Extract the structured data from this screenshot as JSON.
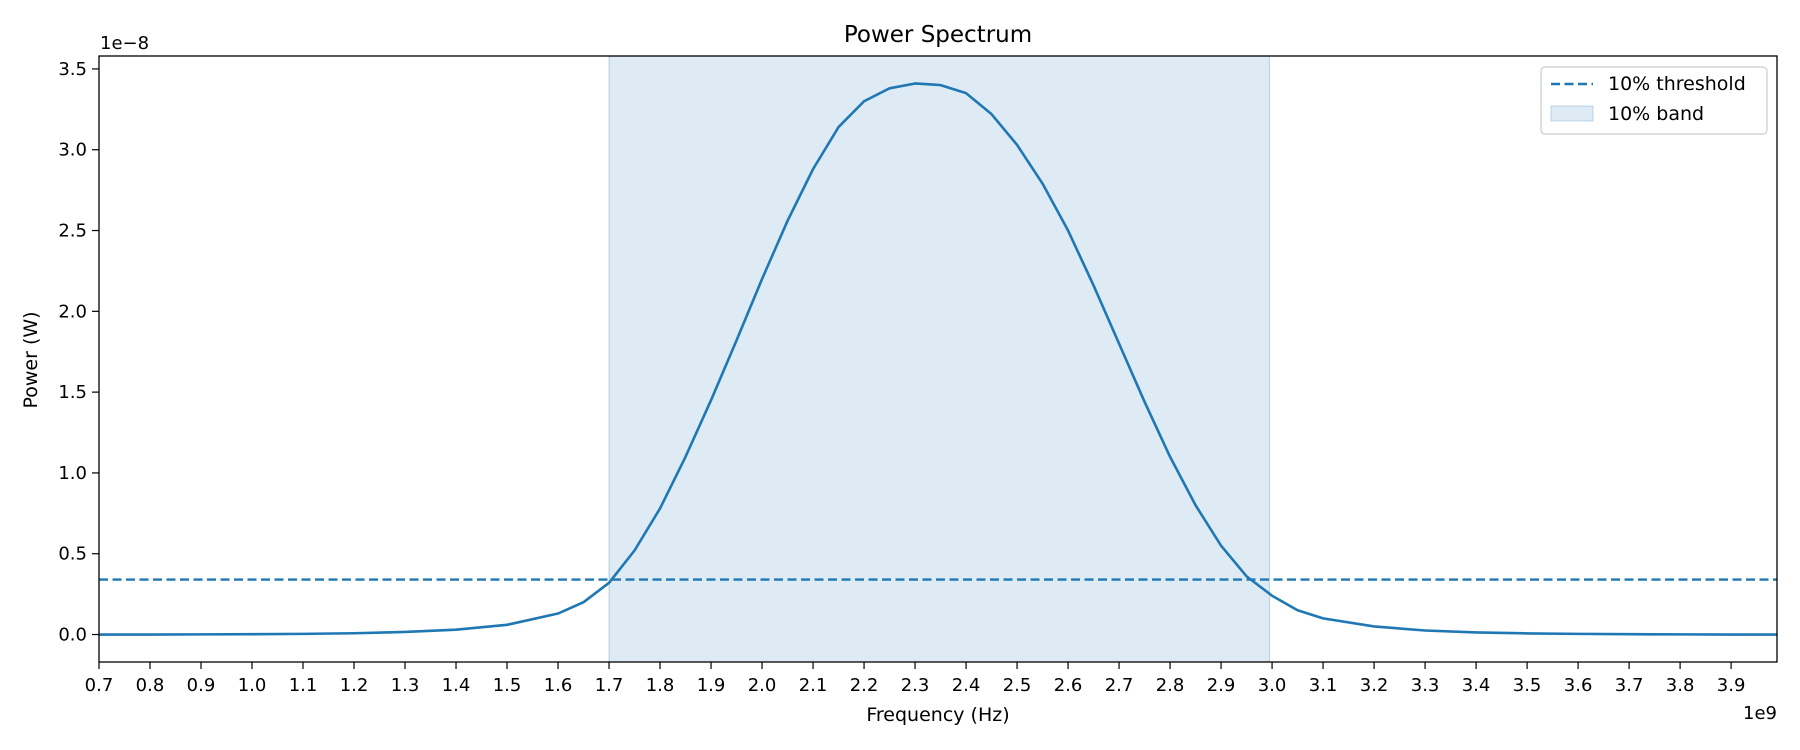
{
  "chart_data": {
    "type": "line",
    "title": "Power Spectrum",
    "xlabel": "Frequency (Hz)",
    "ylabel": "Power (W)",
    "x_offset_label": "1e9",
    "y_offset_label": "1e−8",
    "xlim": [
      0.7,
      3.99
    ],
    "ylim": [
      -0.17,
      3.58
    ],
    "x_ticks": [
      0.7,
      0.8,
      0.9,
      1.0,
      1.1,
      1.2,
      1.3,
      1.4,
      1.5,
      1.6,
      1.7,
      1.8,
      1.9,
      2.0,
      2.1,
      2.2,
      2.3,
      2.4,
      2.5,
      2.6,
      2.7,
      2.8,
      2.9,
      3.0,
      3.1,
      3.2,
      3.3,
      3.4,
      3.5,
      3.6,
      3.7,
      3.8,
      3.9
    ],
    "x_tick_labels": [
      "0.7",
      "0.8",
      "0.9",
      "1.0",
      "1.1",
      "1.2",
      "1.3",
      "1.4",
      "1.5",
      "1.6",
      "1.7",
      "1.8",
      "1.9",
      "2.0",
      "2.1",
      "2.2",
      "2.3",
      "2.4",
      "2.5",
      "2.6",
      "2.7",
      "2.8",
      "2.9",
      "3.0",
      "3.1",
      "3.2",
      "3.3",
      "3.4",
      "3.5",
      "3.6",
      "3.7",
      "3.8",
      "3.9"
    ],
    "y_ticks": [
      0.0,
      0.5,
      1.0,
      1.5,
      2.0,
      2.5,
      3.0,
      3.5
    ],
    "y_tick_labels": [
      "0.0",
      "0.5",
      "1.0",
      "1.5",
      "2.0",
      "2.5",
      "3.0",
      "3.5"
    ],
    "grid": false,
    "legend_position": "top-right",
    "series": [
      {
        "name": "",
        "color": "#1f77b4",
        "x": [
          0.7,
          0.8,
          0.9,
          1.0,
          1.1,
          1.2,
          1.3,
          1.4,
          1.5,
          1.6,
          1.65,
          1.7,
          1.75,
          1.8,
          1.85,
          1.9,
          1.95,
          2.0,
          2.05,
          2.1,
          2.15,
          2.2,
          2.25,
          2.3,
          2.35,
          2.4,
          2.45,
          2.5,
          2.55,
          2.6,
          2.65,
          2.7,
          2.75,
          2.8,
          2.85,
          2.9,
          2.95,
          3.0,
          3.05,
          3.1,
          3.2,
          3.3,
          3.4,
          3.5,
          3.6,
          3.7,
          3.8,
          3.9,
          3.99
        ],
        "y": [
          0.0,
          0.0,
          0.001,
          0.002,
          0.004,
          0.008,
          0.016,
          0.03,
          0.06,
          0.13,
          0.2,
          0.32,
          0.52,
          0.78,
          1.1,
          1.45,
          1.82,
          2.2,
          2.56,
          2.88,
          3.14,
          3.3,
          3.38,
          3.41,
          3.4,
          3.35,
          3.22,
          3.03,
          2.79,
          2.5,
          2.16,
          1.8,
          1.44,
          1.1,
          0.8,
          0.55,
          0.36,
          0.24,
          0.15,
          0.1,
          0.05,
          0.025,
          0.013,
          0.007,
          0.004,
          0.002,
          0.001,
          0.0,
          0.0
        ]
      }
    ],
    "threshold": {
      "label": "10% threshold",
      "value": 0.34,
      "color": "#1f77b4",
      "style": "dashed"
    },
    "band": {
      "label": "10% band",
      "x_start": 1.7,
      "x_end": 2.995,
      "color": "#1f77b4",
      "opacity": 0.15
    }
  }
}
